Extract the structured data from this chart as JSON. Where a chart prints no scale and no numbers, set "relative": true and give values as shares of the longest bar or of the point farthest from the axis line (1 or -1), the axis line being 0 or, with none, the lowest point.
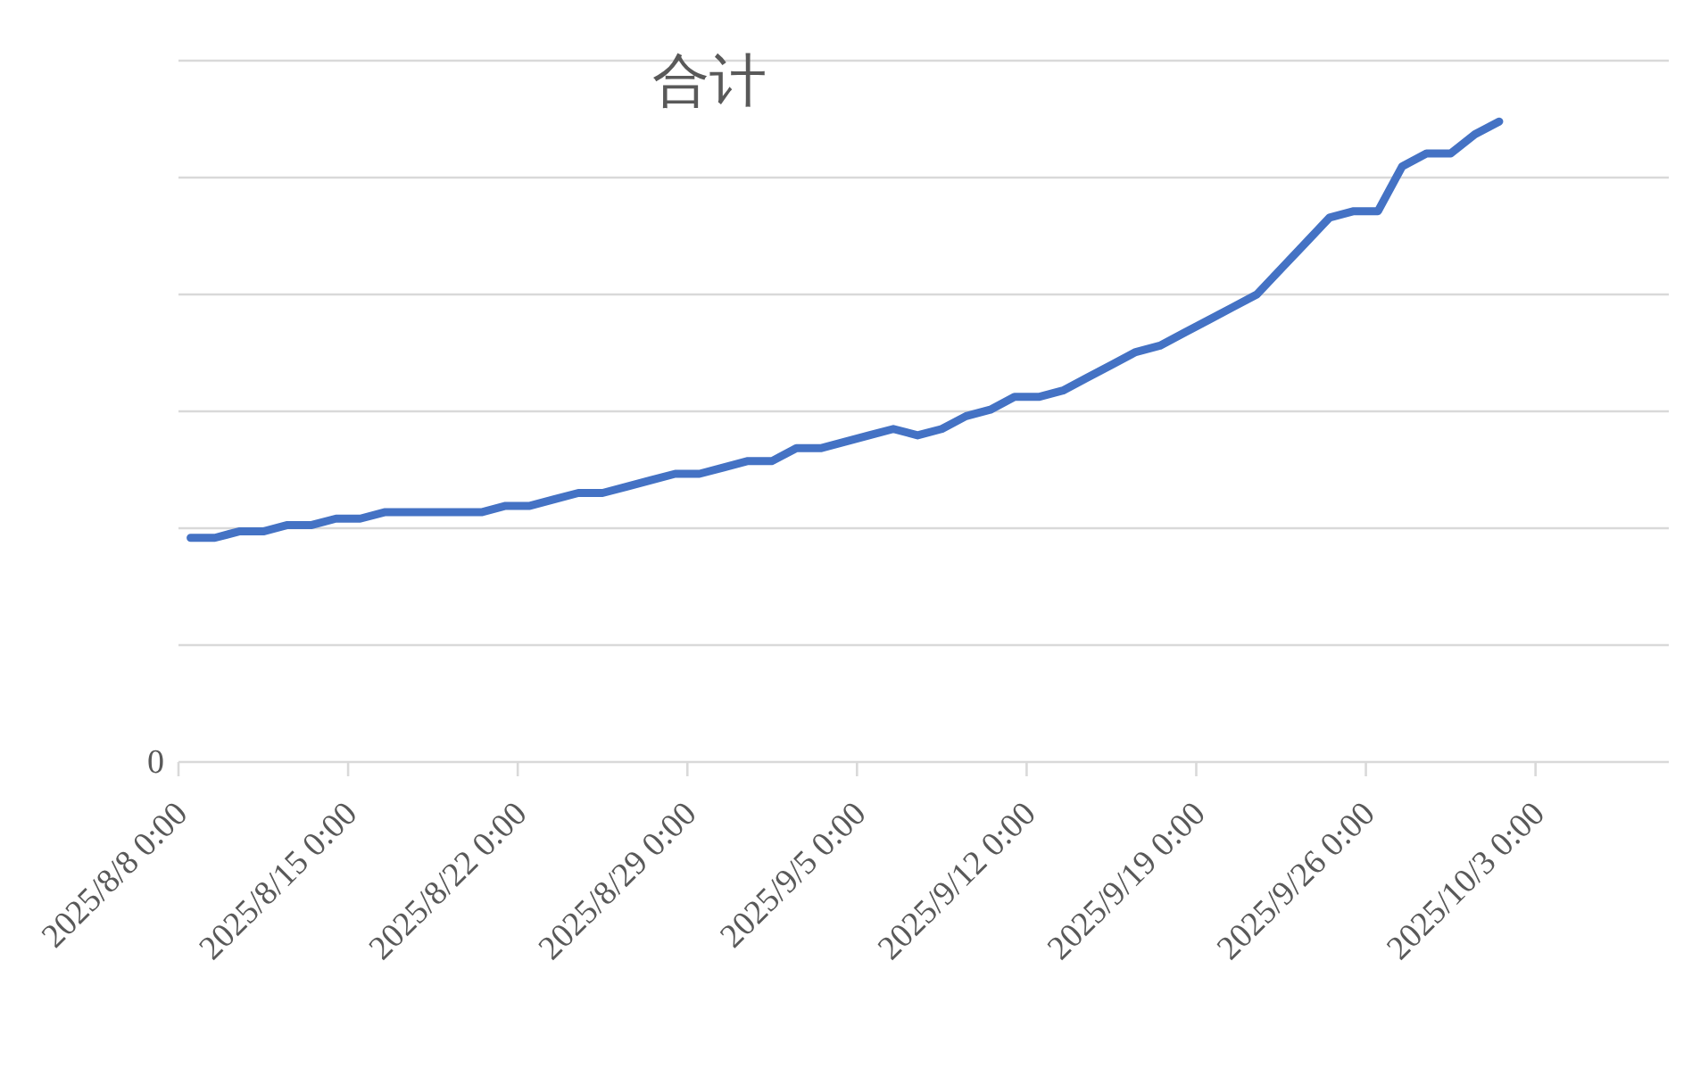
{
  "chart_data": {
    "type": "line",
    "title": "合计",
    "relative": true,
    "grid": "y",
    "marker": "none",
    "line_style": "solid",
    "xlim": [
      "2025-08-08",
      "2025-10-08T12:00"
    ],
    "xticks": [
      {
        "value": "2025-08-08",
        "label": "2025/8/8 0:00"
      },
      {
        "value": "2025-08-15",
        "label": "2025/8/15 0:00"
      },
      {
        "value": "2025-08-22",
        "label": "2025/8/22 0:00"
      },
      {
        "value": "2025-08-29",
        "label": "2025/8/29 0:00"
      },
      {
        "value": "2025-09-05",
        "label": "2025/9/5 0:00"
      },
      {
        "value": "2025-09-12",
        "label": "2025/9/12 0:00"
      },
      {
        "value": "2025-09-19",
        "label": "2025/9/19 0:00"
      },
      {
        "value": "2025-09-26",
        "label": "2025/9/26 0:00"
      },
      {
        "value": "2025-10-03",
        "label": "2025/10/3 0:00"
      }
    ],
    "annotations": [
      "0"
    ],
    "x": [
      "2025-08-08T12:00",
      "2025-08-09T12:00",
      "2025-08-10T12:00",
      "2025-08-11T12:00",
      "2025-08-12T12:00",
      "2025-08-13T12:00",
      "2025-08-14T12:00",
      "2025-08-15T12:00",
      "2025-08-16T12:00",
      "2025-08-17T12:00",
      "2025-08-18T12:00",
      "2025-08-19T12:00",
      "2025-08-20T12:00",
      "2025-08-21T12:00",
      "2025-08-22T12:00",
      "2025-08-23T12:00",
      "2025-08-24T12:00",
      "2025-08-25T12:00",
      "2025-08-26T12:00",
      "2025-08-27T12:00",
      "2025-08-28T12:00",
      "2025-08-29T12:00",
      "2025-08-30T12:00",
      "2025-08-31T12:00",
      "2025-09-01T12:00",
      "2025-09-02T12:00",
      "2025-09-03T12:00",
      "2025-09-04T12:00",
      "2025-09-05T12:00",
      "2025-09-06T12:00",
      "2025-09-07T12:00",
      "2025-09-08T12:00",
      "2025-09-09T12:00",
      "2025-09-10T12:00",
      "2025-09-11T12:00",
      "2025-09-12T12:00",
      "2025-09-13T12:00",
      "2025-09-14T12:00",
      "2025-09-15T12:00",
      "2025-09-16T12:00",
      "2025-09-17T12:00",
      "2025-09-18T12:00",
      "2025-09-19T12:00",
      "2025-09-20T12:00",
      "2025-09-21T12:00",
      "2025-09-22T12:00",
      "2025-09-23T12:00",
      "2025-09-24T12:00",
      "2025-09-25T12:00",
      "2025-09-26T12:00",
      "2025-09-27T12:00",
      "2025-09-28T12:00",
      "2025-09-29T12:00",
      "2025-09-30T12:00",
      "2025-10-01T12:00"
    ],
    "series": [
      {
        "color": "#4472c4",
        "values": [
          0.35,
          0.35,
          0.36,
          0.36,
          0.37,
          0.37,
          0.38,
          0.38,
          0.39,
          0.39,
          0.39,
          0.39,
          0.39,
          0.4,
          0.4,
          0.41,
          0.42,
          0.42,
          0.43,
          0.44,
          0.45,
          0.45,
          0.46,
          0.47,
          0.47,
          0.49,
          0.49,
          0.5,
          0.51,
          0.52,
          0.51,
          0.52,
          0.54,
          0.55,
          0.57,
          0.57,
          0.58,
          0.6,
          0.62,
          0.64,
          0.65,
          0.67,
          0.69,
          0.71,
          0.73,
          0.77,
          0.81,
          0.85,
          0.86,
          0.86,
          0.93,
          0.95,
          0.95,
          0.98,
          1.0
        ]
      }
    ]
  }
}
